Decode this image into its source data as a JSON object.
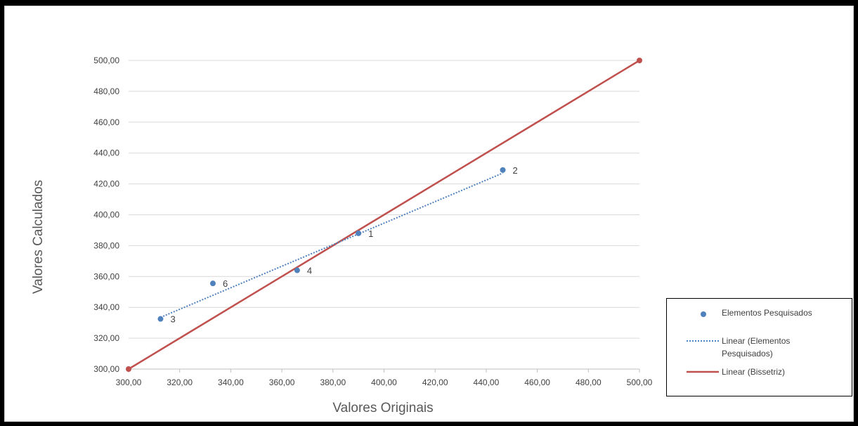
{
  "chart_data": {
    "type": "scatter",
    "title": "",
    "xlabel": "Valores Originais",
    "ylabel": "Valores Calculados",
    "xlim": [
      300,
      500
    ],
    "ylim": [
      300,
      500
    ],
    "xticks": [
      "300,00",
      "320,00",
      "340,00",
      "360,00",
      "380,00",
      "400,00",
      "420,00",
      "440,00",
      "460,00",
      "480,00",
      "500,00"
    ],
    "yticks": [
      "300,00",
      "320,00",
      "340,00",
      "360,00",
      "380,00",
      "400,00",
      "420,00",
      "440,00",
      "460,00",
      "480,00",
      "500,00"
    ],
    "grid": "horizontal",
    "legend_position": "bottom-right",
    "series": [
      {
        "name": "Elementos Pesquisados",
        "kind": "scatter",
        "color": "#4f81bd",
        "points": [
          {
            "label": "1",
            "x": 390.0,
            "y": 388.0
          },
          {
            "label": "2",
            "x": 446.5,
            "y": 429.0
          },
          {
            "label": "3",
            "x": 312.5,
            "y": 332.5
          },
          {
            "label": "4",
            "x": 366.0,
            "y": 364.0
          },
          {
            "label": "6",
            "x": 333.0,
            "y": 355.5
          }
        ]
      },
      {
        "name": "Linear (Elementos Pesquisados)",
        "kind": "trendline",
        "style": "dotted",
        "color": "#4f81bd",
        "points": [
          {
            "x": 312.5,
            "y": 333.5
          },
          {
            "x": 446.5,
            "y": 427.0
          }
        ]
      },
      {
        "name": "Linear (Bissetriz)",
        "kind": "line",
        "color": "#c0504d",
        "points": [
          {
            "x": 300,
            "y": 300
          },
          {
            "x": 500,
            "y": 500
          }
        ]
      }
    ],
    "legend": {
      "entries": [
        {
          "lines": [
            "Elementos Pesquisados"
          ],
          "symbol": "marker",
          "color": "#4f81bd"
        },
        {
          "lines": [
            "Linear (Elementos",
            "Pesquisados)"
          ],
          "symbol": "dotted",
          "color": "#4f81bd"
        },
        {
          "lines": [
            "Linear (Bissetriz)"
          ],
          "symbol": "solid",
          "color": "#c0504d"
        }
      ]
    }
  }
}
